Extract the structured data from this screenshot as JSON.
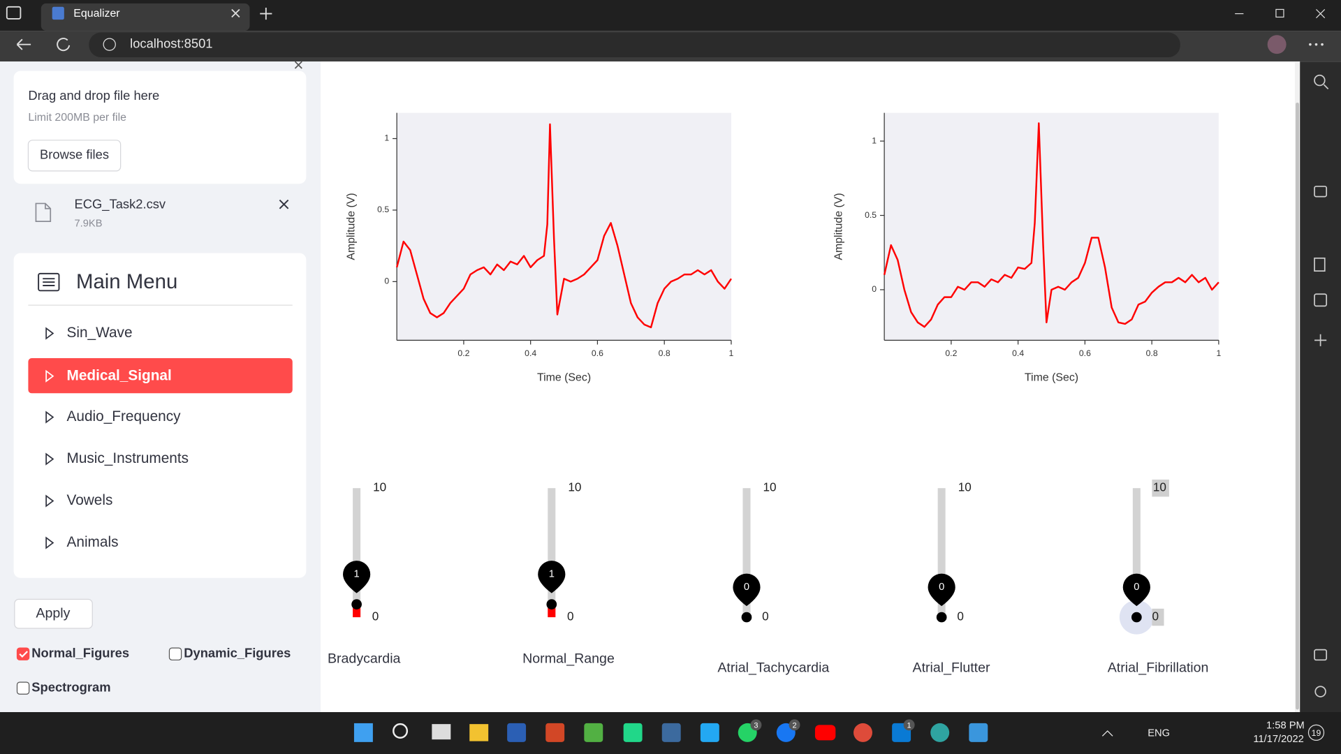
{
  "browser": {
    "tab_title": "Equalizer",
    "url": "localhost:8501"
  },
  "sidebar": {
    "uploader": {
      "prompt": "Drag and drop file here",
      "limit": "Limit 200MB per file",
      "button": "Browse files"
    },
    "file": {
      "name": "ECG_Task2.csv",
      "size": "7.9KB"
    },
    "menu": {
      "title": "Main Menu",
      "items": [
        "Sin_Wave",
        "Medical_Signal",
        "Audio_Frequency",
        "Music_Instruments",
        "Vowels",
        "Animals"
      ],
      "selected": 1
    },
    "apply": "Apply",
    "checkboxes": [
      {
        "label": "Normal_Figures",
        "checked": true
      },
      {
        "label": "Dynamic_Figures",
        "checked": false
      },
      {
        "label": "Spectrogram",
        "checked": false
      }
    ]
  },
  "chart_data": [
    {
      "type": "line",
      "x_label": "Time (Sec)",
      "y_label": "Amplitude (V)",
      "color": "#ff0000",
      "x": [
        0,
        0.02,
        0.04,
        0.06,
        0.08,
        0.1,
        0.12,
        0.14,
        0.16,
        0.18,
        0.2,
        0.22,
        0.24,
        0.26,
        0.28,
        0.3,
        0.32,
        0.34,
        0.36,
        0.38,
        0.4,
        0.42,
        0.44,
        0.45,
        0.458,
        0.47,
        0.48,
        0.5,
        0.52,
        0.54,
        0.56,
        0.58,
        0.6,
        0.62,
        0.64,
        0.66,
        0.68,
        0.7,
        0.72,
        0.74,
        0.76,
        0.78,
        0.8,
        0.82,
        0.84,
        0.86,
        0.88,
        0.9,
        0.92,
        0.94,
        0.96,
        0.98,
        1
      ],
      "values": [
        0.1,
        0.28,
        0.22,
        0.05,
        -0.12,
        -0.22,
        -0.25,
        -0.22,
        -0.15,
        -0.1,
        -0.05,
        0.05,
        0.08,
        0.1,
        0.05,
        0.12,
        0.08,
        0.14,
        0.12,
        0.18,
        0.1,
        0.15,
        0.18,
        0.4,
        1.1,
        0.3,
        -0.23,
        0.02,
        0,
        0.02,
        0.05,
        0.1,
        0.15,
        0.32,
        0.41,
        0.25,
        0.05,
        -0.15,
        -0.25,
        -0.3,
        -0.32,
        -0.15,
        -0.05,
        0,
        0.02,
        0.05,
        0.05,
        0.08,
        0.05,
        0.08,
        0,
        -0.05,
        0.02
      ],
      "xlim": [
        0,
        1
      ],
      "ylim": [
        -0.41,
        1.18
      ],
      "xticks": [
        0.2,
        0.4,
        0.6,
        0.8,
        1
      ],
      "yticks": [
        0,
        0.5,
        1
      ]
    },
    {
      "type": "line",
      "x_label": "Time (Sec)",
      "y_label": "Amplitude (V)",
      "color": "#ff0000",
      "x": [
        0,
        0.02,
        0.04,
        0.06,
        0.08,
        0.1,
        0.12,
        0.14,
        0.16,
        0.18,
        0.2,
        0.22,
        0.24,
        0.26,
        0.28,
        0.3,
        0.32,
        0.34,
        0.36,
        0.38,
        0.4,
        0.42,
        0.44,
        0.45,
        0.462,
        0.475,
        0.485,
        0.5,
        0.52,
        0.54,
        0.56,
        0.58,
        0.6,
        0.62,
        0.64,
        0.66,
        0.68,
        0.7,
        0.72,
        0.74,
        0.76,
        0.78,
        0.8,
        0.82,
        0.84,
        0.86,
        0.88,
        0.9,
        0.92,
        0.94,
        0.96,
        0.98,
        1
      ],
      "values": [
        0.1,
        0.3,
        0.2,
        0.0,
        -0.15,
        -0.22,
        -0.25,
        -0.2,
        -0.1,
        -0.05,
        -0.05,
        0.02,
        0.0,
        0.05,
        0.05,
        0.02,
        0.07,
        0.05,
        0.1,
        0.08,
        0.15,
        0.14,
        0.18,
        0.45,
        1.12,
        0.3,
        -0.22,
        0.0,
        0.02,
        0.0,
        0.05,
        0.08,
        0.18,
        0.35,
        0.35,
        0.15,
        -0.12,
        -0.22,
        -0.23,
        -0.2,
        -0.1,
        -0.08,
        -0.02,
        0.02,
        0.05,
        0.05,
        0.08,
        0.05,
        0.1,
        0.05,
        0.08,
        0.0,
        0.05
      ],
      "xlim": [
        0,
        1
      ],
      "ylim": [
        -0.34,
        1.19
      ],
      "xticks": [
        0.2,
        0.4,
        0.6,
        0.8,
        1
      ],
      "yticks": [
        0,
        0.5,
        1
      ]
    }
  ],
  "sliders": [
    {
      "label": "Bradycardia",
      "value": 1,
      "min": 0,
      "max": 10,
      "focused": false
    },
    {
      "label": "Normal_Range",
      "value": 1,
      "min": 0,
      "max": 10,
      "focused": false
    },
    {
      "label": "Atrial_Tachycardia",
      "value": 0,
      "min": 0,
      "max": 10,
      "focused": false
    },
    {
      "label": "Atrial_Flutter",
      "value": 0,
      "min": 0,
      "max": 10,
      "focused": false
    },
    {
      "label": "Atrial_Fibrillation",
      "value": 0,
      "min": 0,
      "max": 10,
      "focused": true
    }
  ],
  "taskbar": {
    "badges": [
      3,
      2,
      1
    ],
    "language": "ENG",
    "time": "1:58 PM",
    "date": "11/17/2022",
    "notifications": 19
  }
}
